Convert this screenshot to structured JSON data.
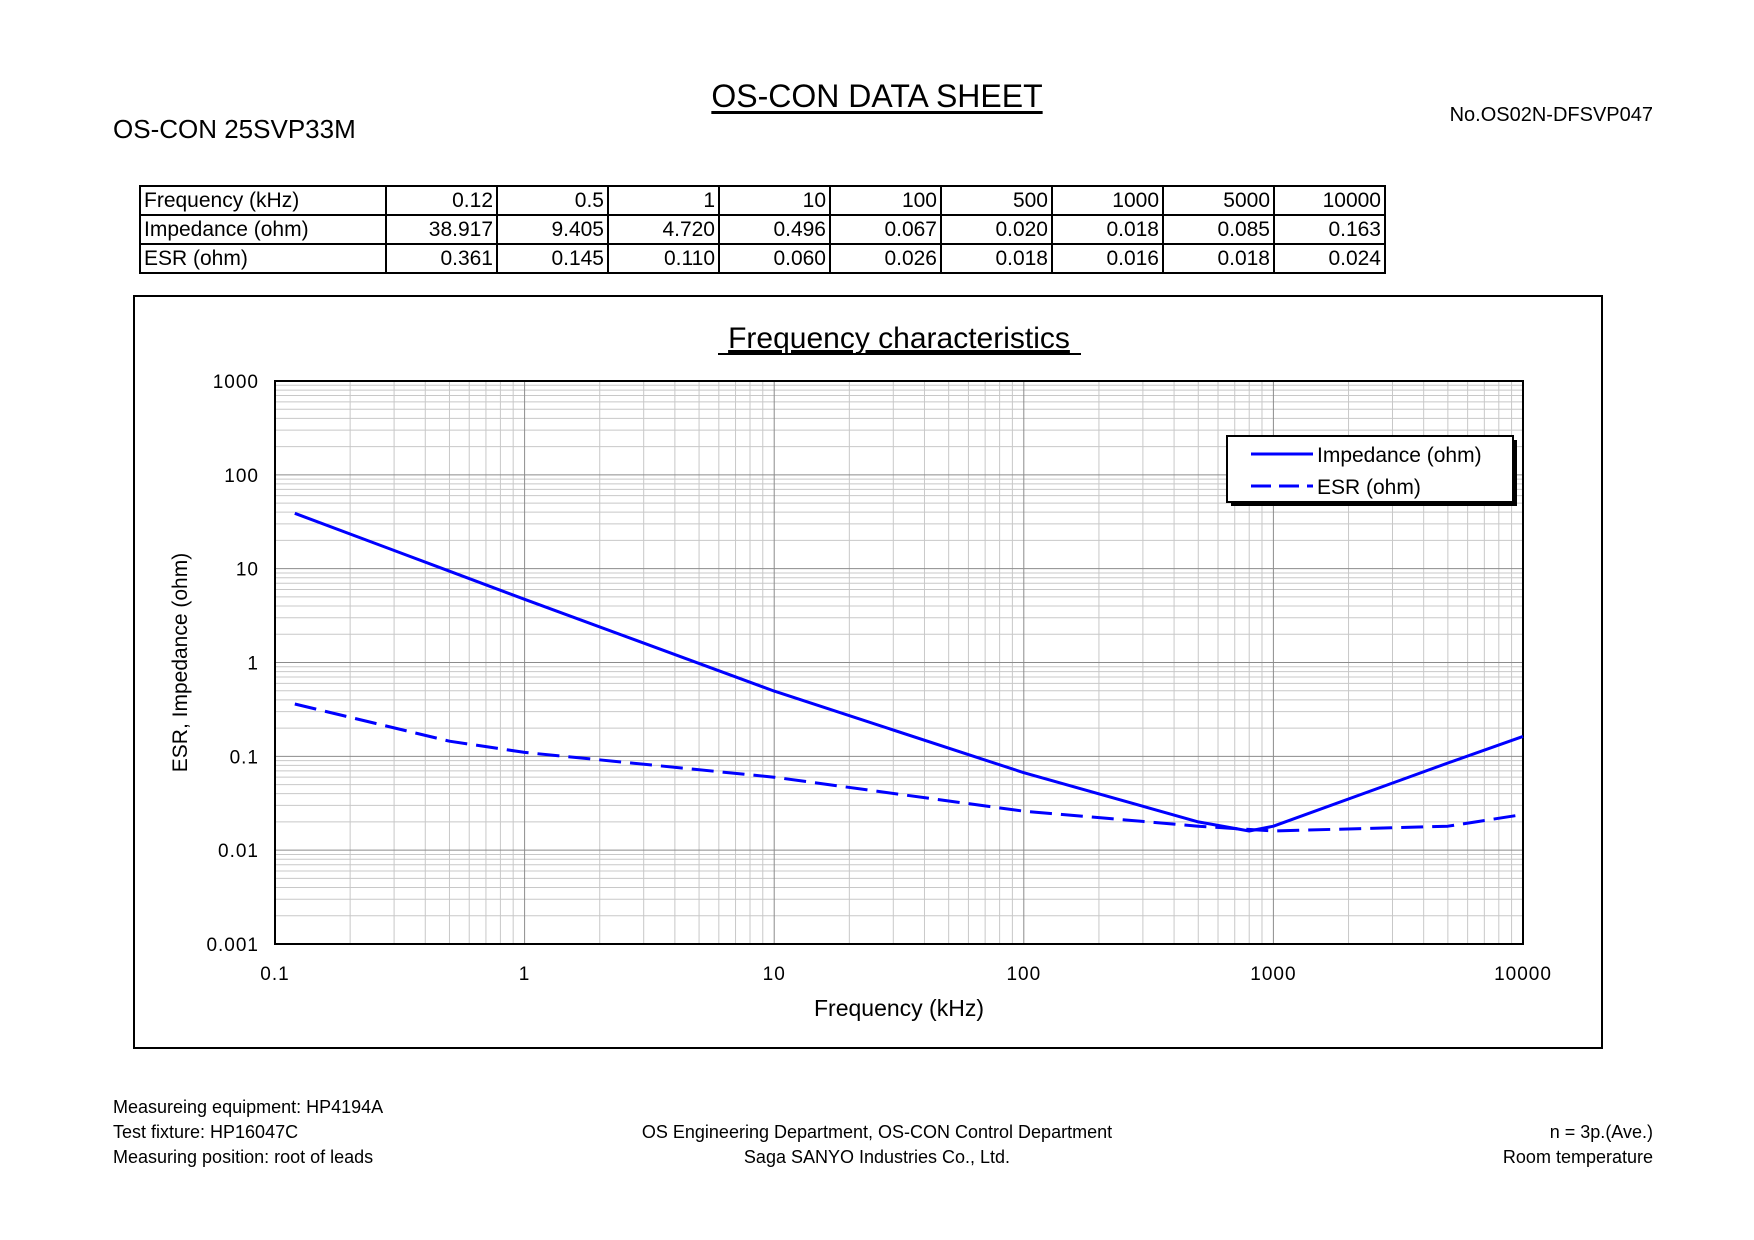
{
  "header": {
    "title": "OS-CON DATA SHEET",
    "model": "OS-CON 25SVP33M",
    "doc_no": "No.OS02N-DFSVP047"
  },
  "table": {
    "rows": [
      {
        "label": "Frequency (kHz)",
        "cells": [
          "0.12",
          "0.5",
          "1",
          "10",
          "100",
          "500",
          "1000",
          "5000",
          "10000"
        ]
      },
      {
        "label": "Impedance (ohm)",
        "cells": [
          "38.917",
          "9.405",
          "4.720",
          "0.496",
          "0.067",
          "0.020",
          "0.018",
          "0.085",
          "0.163"
        ]
      },
      {
        "label": "ESR (ohm)",
        "cells": [
          "0.361",
          "0.145",
          "0.110",
          "0.060",
          "0.026",
          "0.018",
          "0.016",
          "0.018",
          "0.024"
        ]
      }
    ]
  },
  "chart_data": {
    "type": "line",
    "title": "Frequency characteristics",
    "xlabel": "Frequency (kHz)",
    "ylabel": "ESR, Impedance (ohm)",
    "xscale": "log",
    "yscale": "log",
    "xlim": [
      0.1,
      10000
    ],
    "ylim": [
      0.001,
      1000
    ],
    "xticks": [
      "0.1",
      "1",
      "10",
      "100",
      "1000",
      "10000"
    ],
    "yticks": [
      "1000",
      "100",
      "10",
      "1",
      "0.1",
      "0.01",
      "0.001"
    ],
    "grid": true,
    "legend_position": "top-right",
    "series": [
      {
        "name": "Impedance (ohm)",
        "style": "solid",
        "color": "#0000ff",
        "x": [
          0.12,
          0.5,
          1,
          10,
          100,
          500,
          800,
          1000,
          5000,
          10000
        ],
        "y": [
          38.917,
          9.405,
          4.72,
          0.496,
          0.067,
          0.02,
          0.016,
          0.018,
          0.085,
          0.163
        ]
      },
      {
        "name": "ESR (ohm)",
        "style": "dashed",
        "color": "#0000ff",
        "x": [
          0.12,
          0.5,
          1,
          10,
          100,
          500,
          1000,
          5000,
          10000
        ],
        "y": [
          0.361,
          0.145,
          0.11,
          0.06,
          0.026,
          0.018,
          0.016,
          0.018,
          0.024
        ]
      }
    ]
  },
  "footer": {
    "left": [
      "Measureing equipment: HP4194A",
      "Test fixture: HP16047C",
      "Measuring position: root of leads"
    ],
    "center": [
      "OS Engineering Department, OS-CON Control Department",
      "Saga SANYO Industries Co., Ltd."
    ],
    "right": [
      "n = 3p.(Ave.)",
      "Room temperature"
    ]
  }
}
